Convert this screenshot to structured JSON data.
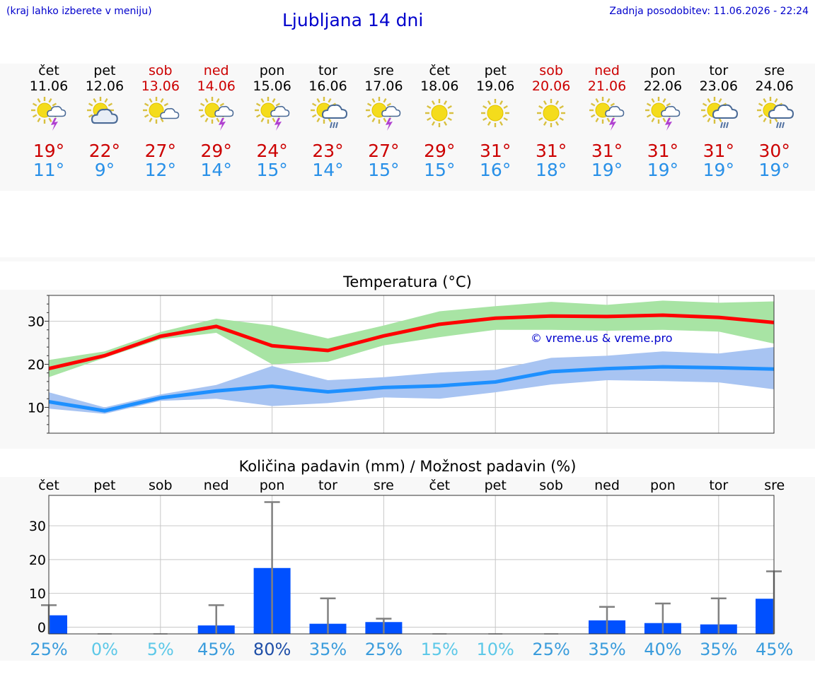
{
  "header": {
    "left_note": "(kraj lahko izberete v meniju)",
    "title": "Ljubljana 14 dni",
    "updated": "Zadnja posodobitev: 11.06.2026 - 22:24"
  },
  "colors": {
    "weekday": "#000000",
    "weekend": "#cc0000",
    "max_line": "#ff0000",
    "max_band": "#a8e4a4",
    "min_line": "#1e90ff",
    "min_band": "#a8c4f2",
    "bar": "#0050ff",
    "error_bar": "#808080",
    "link": "#0000cc"
  },
  "days": [
    {
      "name": "čet",
      "date": "11.06",
      "weekend": false,
      "icon": "sun-cloud-storm-icon",
      "max": "19°",
      "min": "11°"
    },
    {
      "name": "pet",
      "date": "12.06",
      "weekend": false,
      "icon": "sun-cloud-icon",
      "max": "22°",
      "min": "9°"
    },
    {
      "name": "sob",
      "date": "13.06",
      "weekend": true,
      "icon": "sun-small-cloud-icon",
      "max": "27°",
      "min": "12°"
    },
    {
      "name": "ned",
      "date": "14.06",
      "weekend": true,
      "icon": "sun-cloud-storm-icon",
      "max": "29°",
      "min": "14°"
    },
    {
      "name": "pon",
      "date": "15.06",
      "weekend": false,
      "icon": "sun-cloud-storm-icon",
      "max": "24°",
      "min": "15°"
    },
    {
      "name": "tor",
      "date": "16.06",
      "weekend": false,
      "icon": "sun-cloud-rain-icon",
      "max": "23°",
      "min": "14°"
    },
    {
      "name": "sre",
      "date": "17.06",
      "weekend": false,
      "icon": "sun-cloud-storm-icon",
      "max": "27°",
      "min": "15°"
    },
    {
      "name": "čet",
      "date": "18.06",
      "weekend": false,
      "icon": "sun-icon",
      "max": "29°",
      "min": "15°"
    },
    {
      "name": "pet",
      "date": "19.06",
      "weekend": false,
      "icon": "sun-icon",
      "max": "31°",
      "min": "16°"
    },
    {
      "name": "sob",
      "date": "20.06",
      "weekend": true,
      "icon": "sun-icon",
      "max": "31°",
      "min": "18°"
    },
    {
      "name": "ned",
      "date": "21.06",
      "weekend": true,
      "icon": "sun-cloud-storm-icon",
      "max": "31°",
      "min": "19°"
    },
    {
      "name": "pon",
      "date": "22.06",
      "weekend": false,
      "icon": "sun-cloud-storm-icon",
      "max": "31°",
      "min": "19°"
    },
    {
      "name": "tor",
      "date": "23.06",
      "weekend": false,
      "icon": "sun-cloud-rain-icon",
      "max": "31°",
      "min": "19°"
    },
    {
      "name": "sre",
      "date": "24.06",
      "weekend": false,
      "icon": "sun-cloud-rain-icon",
      "max": "30°",
      "min": "19°"
    }
  ],
  "chart_data": [
    {
      "type": "line",
      "title": "Temperatura (°C)",
      "copyright": "© vreme.us & vreme.pro",
      "x": [
        "11.06",
        "12.06",
        "13.06",
        "14.06",
        "15.06",
        "16.06",
        "17.06",
        "18.06",
        "19.06",
        "20.06",
        "21.06",
        "22.06",
        "23.06",
        "24.06"
      ],
      "ylim": [
        4,
        36
      ],
      "yticks": [
        10,
        20,
        30
      ],
      "grid": true,
      "series": [
        {
          "role": "max",
          "values": [
            19,
            22,
            26.5,
            28.8,
            24.3,
            23.2,
            26.6,
            29.3,
            30.7,
            31.2,
            31.1,
            31.4,
            30.9,
            29.7
          ],
          "band_low": [
            17,
            21.5,
            25.8,
            27.3,
            20,
            20.6,
            24.4,
            26.3,
            28,
            28,
            27.8,
            28,
            27.6,
            24.8
          ],
          "band_high": [
            21,
            23,
            27.5,
            30.6,
            29,
            26,
            29,
            32.3,
            33.5,
            34.5,
            33.8,
            34.8,
            34.3,
            34.6
          ]
        },
        {
          "role": "min",
          "values": [
            11.3,
            9.2,
            12.2,
            13.8,
            14.9,
            13.6,
            14.6,
            15.0,
            15.9,
            18.3,
            19.0,
            19.4,
            19.2,
            18.9
          ],
          "band_low": [
            9.7,
            8.5,
            11.5,
            12,
            10.3,
            11,
            12.3,
            12,
            13.5,
            15.3,
            16.3,
            16.1,
            15.8,
            14.2
          ],
          "band_high": [
            13.5,
            10,
            13,
            15.2,
            19.6,
            16.3,
            17,
            18.1,
            18.7,
            21.5,
            22,
            23,
            22.5,
            24
          ]
        }
      ]
    },
    {
      "type": "bar",
      "title": "Količina padavin (mm) / Možnost padavin (%)",
      "categories": [
        "čet",
        "pet",
        "sob",
        "ned",
        "pon",
        "tor",
        "sre",
        "čet",
        "pet",
        "sob",
        "ned",
        "pon",
        "tor",
        "sre"
      ],
      "ylim": [
        -2,
        39
      ],
      "yticks": [
        0,
        10,
        20,
        30
      ],
      "grid": true,
      "values": [
        3.5,
        0,
        0,
        0.5,
        17.5,
        1,
        1.5,
        0,
        0,
        0,
        2,
        1.2,
        0.8,
        8.4
      ],
      "error_max": [
        6.5,
        0,
        0,
        6.5,
        37,
        8.5,
        2.5,
        0,
        0,
        0,
        6,
        7,
        8.5,
        16.5
      ],
      "chance": [
        "25%",
        "0%",
        "5%",
        "45%",
        "80%",
        "35%",
        "25%",
        "15%",
        "10%",
        "25%",
        "35%",
        "40%",
        "35%",
        "45%"
      ],
      "chance_values": [
        25,
        0,
        5,
        45,
        80,
        35,
        25,
        15,
        10,
        25,
        35,
        40,
        35,
        45
      ]
    }
  ]
}
